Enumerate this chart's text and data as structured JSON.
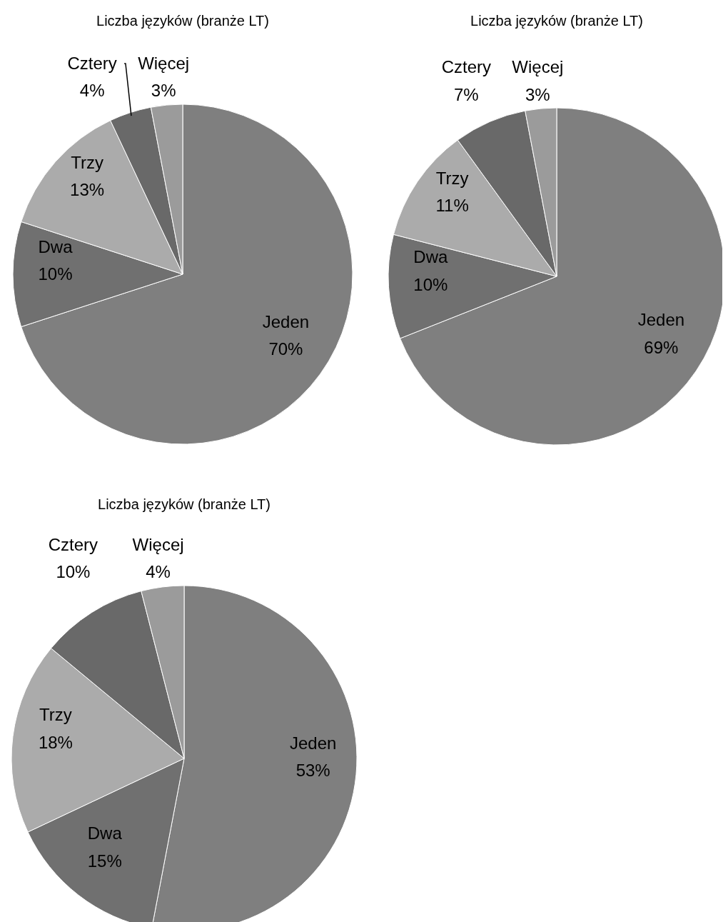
{
  "chart_data": [
    {
      "type": "pie",
      "title": "Liczba języków (branże LT)",
      "categories": [
        "Jeden",
        "Dwa",
        "Trzy",
        "Cztery",
        "Więcej"
      ],
      "values": [
        70,
        10,
        13,
        4,
        3
      ],
      "value_labels": [
        "70%",
        "10%",
        "13%",
        "4%",
        "3%"
      ],
      "colors": [
        "#7f7f7f",
        "#707070",
        "#ababab",
        "#696969",
        "#9b9b9b"
      ]
    },
    {
      "type": "pie",
      "title": "Liczba języków (branże LT)",
      "categories": [
        "Jeden",
        "Dwa",
        "Trzy",
        "Cztery",
        "Więcej"
      ],
      "values": [
        69,
        10,
        11,
        7,
        3
      ],
      "value_labels": [
        "69%",
        "10%",
        "11%",
        "7%",
        "3%"
      ],
      "colors": [
        "#7f7f7f",
        "#707070",
        "#ababab",
        "#696969",
        "#9b9b9b"
      ]
    },
    {
      "type": "pie",
      "title": "Liczba języków (branże LT)",
      "categories": [
        "Jeden",
        "Dwa",
        "Trzy",
        "Cztery",
        "Więcej"
      ],
      "values": [
        53,
        15,
        18,
        10,
        4
      ],
      "value_labels": [
        "53%",
        "15%",
        "18%",
        "10%",
        "4%"
      ],
      "colors": [
        "#7f7f7f",
        "#707070",
        "#ababab",
        "#696969",
        "#9b9b9b"
      ]
    }
  ]
}
